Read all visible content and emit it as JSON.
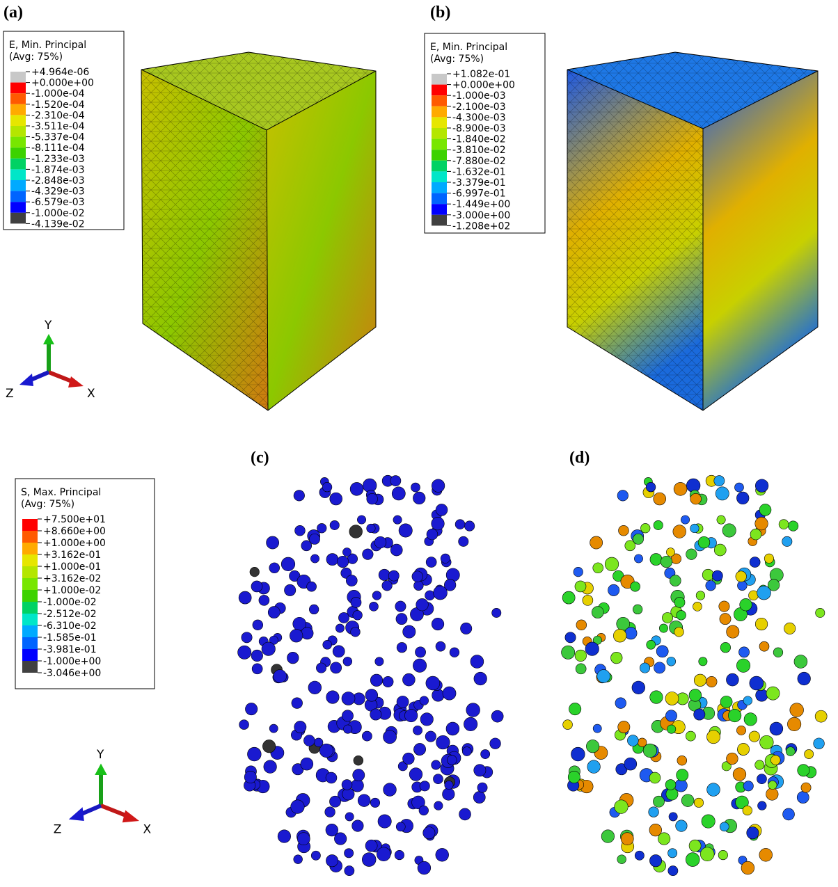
{
  "panels": [
    {
      "label": "(a)"
    },
    {
      "label": "(b)"
    },
    {
      "label": "(c)"
    },
    {
      "label": "(d)"
    }
  ],
  "legends": [
    {
      "title": "E, Min. Principal",
      "subtitle": "(Avg: 75%)",
      "labels": [
        "+4.964e-06",
        "+0.000e+00",
        "-1.000e-04",
        "-1.520e-04",
        "-2.310e-04",
        "-3.511e-04",
        "-5.337e-04",
        "-8.111e-04",
        "-1.233e-03",
        "-1.874e-03",
        "-2.848e-03",
        "-4.329e-03",
        "-6.579e-03",
        "-1.000e-02",
        "-4.139e-02"
      ],
      "colors": [
        "#c8c8c8",
        "#ff0000",
        "#ff5a00",
        "#ffaa00",
        "#e6e600",
        "#b4e600",
        "#78e600",
        "#3cd200",
        "#00d264",
        "#00e6c8",
        "#00aaff",
        "#0064ff",
        "#0000ff",
        "#404040"
      ]
    },
    {
      "title": "E, Min. Principal",
      "subtitle": "(Avg: 75%)",
      "labels": [
        "+1.082e-01",
        "+0.000e+00",
        "-1.000e-03",
        "-2.100e-03",
        "-4.300e-03",
        "-8.900e-03",
        "-1.840e-02",
        "-3.810e-02",
        "-7.880e-02",
        "-1.632e-01",
        "-3.379e-01",
        "-6.997e-01",
        "-1.449e+00",
        "-3.000e+00",
        "-1.208e+02"
      ],
      "colors": [
        "#c8c8c8",
        "#ff0000",
        "#ff5a00",
        "#ffaa00",
        "#e6e600",
        "#b4e600",
        "#78e600",
        "#3cd200",
        "#00d264",
        "#00e6c8",
        "#00aaff",
        "#0064ff",
        "#0000ff",
        "#404040"
      ]
    },
    {
      "title": "S, Max. Principal",
      "subtitle": "(Avg: 75%)",
      "labels": [
        "+7.500e+01",
        "+8.660e+00",
        "+1.000e+00",
        "+3.162e-01",
        "+1.000e-01",
        "+3.162e-02",
        "+1.000e-02",
        "-1.000e-02",
        "-2.512e-02",
        "-6.310e-02",
        "-1.585e-01",
        "-3.981e-01",
        "-1.000e+00",
        "-3.046e+00"
      ],
      "colors": [
        "#ff0000",
        "#ff5a00",
        "#ffaa00",
        "#e6e600",
        "#b4e600",
        "#78e600",
        "#3cd200",
        "#00d264",
        "#00e6c8",
        "#00aaff",
        "#0064ff",
        "#0000ff",
        "#404040"
      ]
    }
  ],
  "triads": [
    {
      "x": "X",
      "y": "Y",
      "z": "Z"
    },
    {
      "x": "X",
      "y": "Y",
      "z": "Z"
    }
  ]
}
